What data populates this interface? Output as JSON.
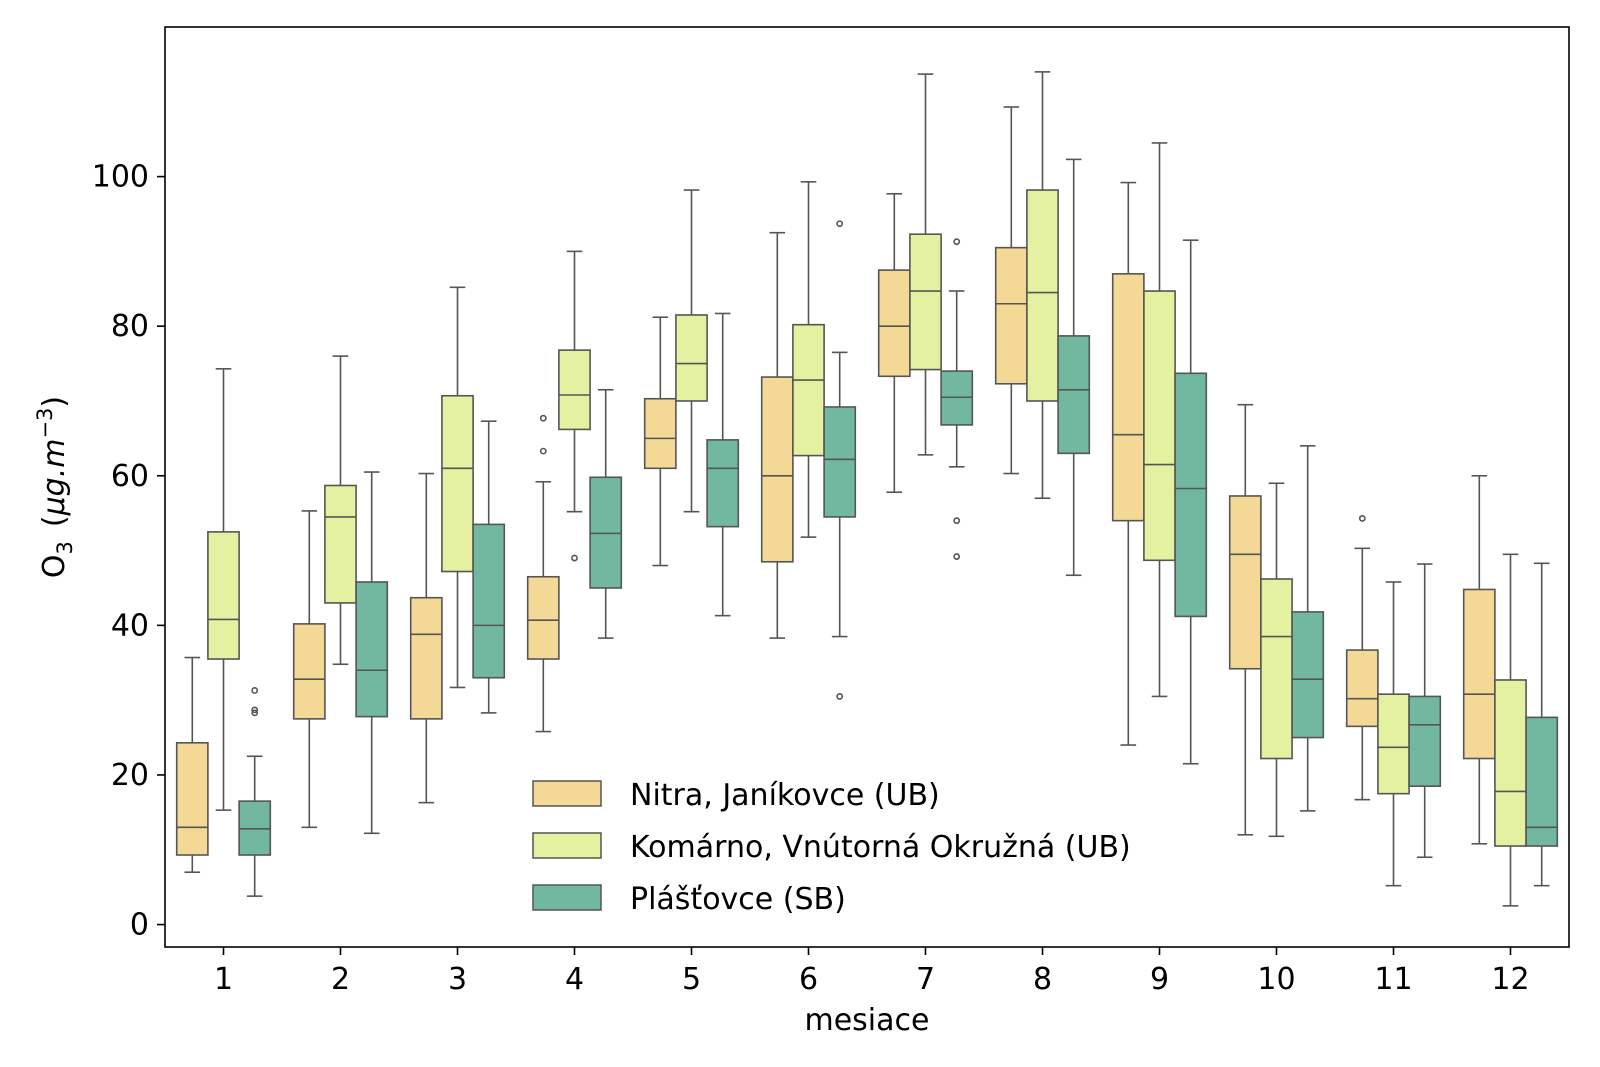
{
  "chart_data": {
    "type": "boxplot",
    "xlabel": "mesiace",
    "ylabel": {
      "base": "O",
      "sub": "3",
      "unit_open": "(",
      "unit_text": "μg.m",
      "unit_sup": "−3",
      "unit_close": ")"
    },
    "ylim": [
      -3,
      120
    ],
    "yticks": [
      0,
      20,
      40,
      60,
      80,
      100
    ],
    "categories": [
      "1",
      "2",
      "3",
      "4",
      "5",
      "6",
      "7",
      "8",
      "9",
      "10",
      "11",
      "12"
    ],
    "legend_position": "lower-center",
    "series": [
      {
        "name": "Nitra, Janíkovce (UB)",
        "color": "#f3d995",
        "boxes": [
          {
            "whislo": 7,
            "q1": 9.3,
            "med": 13,
            "q3": 24.3,
            "whishi": 35.7,
            "fliers": []
          },
          {
            "whislo": 13,
            "q1": 27.5,
            "med": 32.8,
            "q3": 40.2,
            "whishi": 55.3,
            "fliers": []
          },
          {
            "whislo": 16.3,
            "q1": 27.5,
            "med": 38.8,
            "q3": 43.7,
            "whishi": 60.3,
            "fliers": []
          },
          {
            "whislo": 25.8,
            "q1": 35.5,
            "med": 40.7,
            "q3": 46.5,
            "whishi": 59.2,
            "fliers": [
              63.3,
              67.7
            ]
          },
          {
            "whislo": 48,
            "q1": 61,
            "med": 65,
            "q3": 70.3,
            "whishi": 81.2,
            "fliers": []
          },
          {
            "whislo": 38.3,
            "q1": 48.5,
            "med": 60,
            "q3": 73.2,
            "whishi": 92.5,
            "fliers": []
          },
          {
            "whislo": 57.8,
            "q1": 73.3,
            "med": 80,
            "q3": 87.5,
            "whishi": 97.7,
            "fliers": []
          },
          {
            "whislo": 60.3,
            "q1": 72.3,
            "med": 83,
            "q3": 90.5,
            "whishi": 109.3,
            "fliers": []
          },
          {
            "whislo": 24,
            "q1": 54,
            "med": 65.5,
            "q3": 87,
            "whishi": 99.2,
            "fliers": []
          },
          {
            "whislo": 12,
            "q1": 34.2,
            "med": 49.5,
            "q3": 57.3,
            "whishi": 69.5,
            "fliers": []
          },
          {
            "whislo": 16.7,
            "q1": 26.5,
            "med": 30.2,
            "q3": 36.7,
            "whishi": 50.3,
            "fliers": [
              54.3
            ]
          },
          {
            "whislo": 10.8,
            "q1": 22.2,
            "med": 30.8,
            "q3": 44.8,
            "whishi": 60,
            "fliers": []
          }
        ]
      },
      {
        "name": "Komárno, Vnútorná Okružná (UB)",
        "color": "#e4f1a1",
        "boxes": [
          {
            "whislo": 15.3,
            "q1": 35.5,
            "med": 40.8,
            "q3": 52.5,
            "whishi": 74.3,
            "fliers": []
          },
          {
            "whislo": 34.8,
            "q1": 43,
            "med": 54.5,
            "q3": 58.7,
            "whishi": 76,
            "fliers": []
          },
          {
            "whislo": 31.7,
            "q1": 47.2,
            "med": 61,
            "q3": 70.7,
            "whishi": 85.2,
            "fliers": []
          },
          {
            "whislo": 55.2,
            "q1": 66.2,
            "med": 70.8,
            "q3": 76.8,
            "whishi": 90,
            "fliers": [
              49
            ]
          },
          {
            "whislo": 55.2,
            "q1": 70,
            "med": 75,
            "q3": 81.5,
            "whishi": 98.2,
            "fliers": []
          },
          {
            "whislo": 51.8,
            "q1": 62.7,
            "med": 72.8,
            "q3": 80.2,
            "whishi": 99.3,
            "fliers": []
          },
          {
            "whislo": 62.8,
            "q1": 74.2,
            "med": 84.7,
            "q3": 92.3,
            "whishi": 113.7,
            "fliers": []
          },
          {
            "whislo": 57,
            "q1": 70,
            "med": 84.5,
            "q3": 98.2,
            "whishi": 114,
            "fliers": []
          },
          {
            "whislo": 30.5,
            "q1": 48.7,
            "med": 61.5,
            "q3": 84.7,
            "whishi": 104.5,
            "fliers": []
          },
          {
            "whislo": 11.8,
            "q1": 22.2,
            "med": 38.5,
            "q3": 46.2,
            "whishi": 59,
            "fliers": []
          },
          {
            "whislo": 5.2,
            "q1": 17.5,
            "med": 23.7,
            "q3": 30.8,
            "whishi": 45.8,
            "fliers": []
          },
          {
            "whislo": 2.5,
            "q1": 10.5,
            "med": 17.8,
            "q3": 32.7,
            "whishi": 49.5,
            "fliers": []
          }
        ]
      },
      {
        "name": "Plášťovce (SB)",
        "color": "#72b8a1",
        "boxes": [
          {
            "whislo": 3.8,
            "q1": 9.3,
            "med": 12.8,
            "q3": 16.5,
            "whishi": 22.5,
            "fliers": [
              28.3,
              28.7,
              31.3
            ]
          },
          {
            "whislo": 12.2,
            "q1": 27.8,
            "med": 34,
            "q3": 45.8,
            "whishi": 60.5,
            "fliers": []
          },
          {
            "whislo": 28.3,
            "q1": 33,
            "med": 40,
            "q3": 53.5,
            "whishi": 67.3,
            "fliers": []
          },
          {
            "whislo": 38.3,
            "q1": 45,
            "med": 52.3,
            "q3": 59.8,
            "whishi": 71.5,
            "fliers": []
          },
          {
            "whislo": 41.3,
            "q1": 53.2,
            "med": 61,
            "q3": 64.8,
            "whishi": 81.7,
            "fliers": []
          },
          {
            "whislo": 38.5,
            "q1": 54.5,
            "med": 62.2,
            "q3": 69.2,
            "whishi": 76.5,
            "fliers": [
              30.5,
              93.7
            ]
          },
          {
            "whislo": 61.2,
            "q1": 66.8,
            "med": 70.5,
            "q3": 74,
            "whishi": 84.7,
            "fliers": [
              49.2,
              54,
              91.3
            ]
          },
          {
            "whislo": 46.7,
            "q1": 63,
            "med": 71.5,
            "q3": 78.7,
            "whishi": 102.3,
            "fliers": []
          },
          {
            "whislo": 21.5,
            "q1": 41.2,
            "med": 58.3,
            "q3": 73.7,
            "whishi": 91.5,
            "fliers": []
          },
          {
            "whislo": 15.2,
            "q1": 25,
            "med": 32.8,
            "q3": 41.8,
            "whishi": 64,
            "fliers": []
          },
          {
            "whislo": 9,
            "q1": 18.5,
            "med": 26.7,
            "q3": 30.5,
            "whishi": 48.2,
            "fliers": []
          },
          {
            "whislo": 5.2,
            "q1": 10.5,
            "med": 13,
            "q3": 27.7,
            "whishi": 48.3,
            "fliers": []
          }
        ]
      }
    ]
  }
}
